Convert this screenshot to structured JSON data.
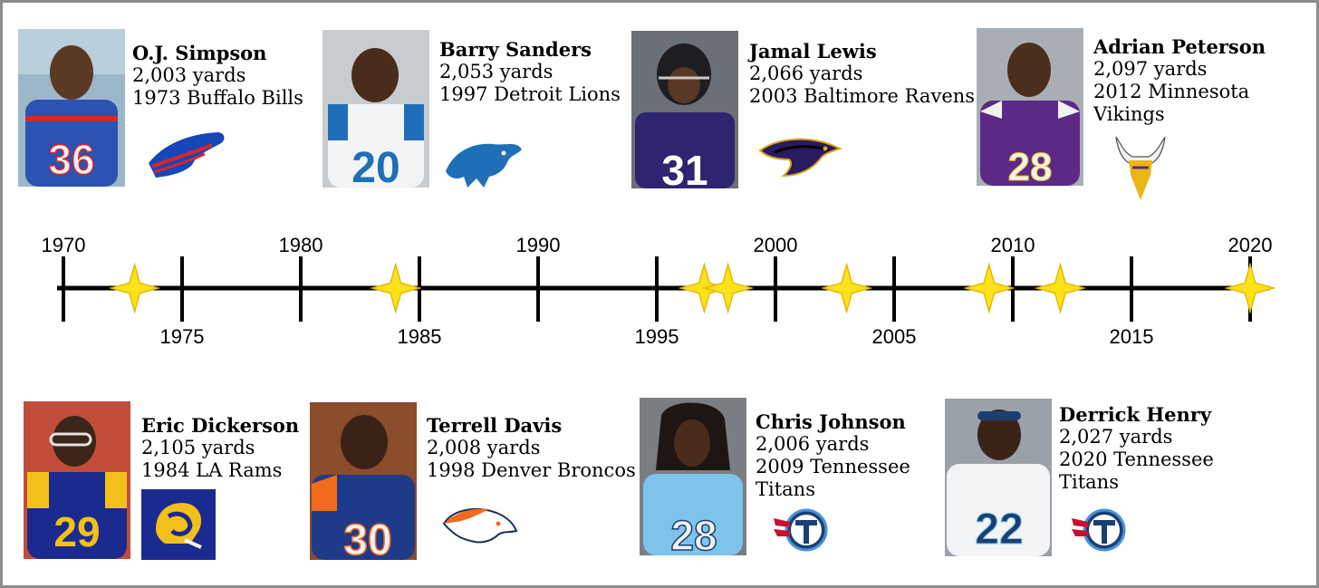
{
  "timeline": {
    "years_above": [
      "1970",
      "1980",
      "1990",
      "2000",
      "2010",
      "2020"
    ],
    "years_below": [
      "1975",
      "1985",
      "1995",
      "2005",
      "2015"
    ],
    "record_years": [
      1973,
      1984,
      1997,
      1998,
      2003,
      2009,
      2012,
      2020
    ]
  },
  "players_top": [
    {
      "name": "O.J. Simpson",
      "yards": "2,003 yards",
      "team_line1": "1973 Buffalo Bills",
      "team_line2": "",
      "jersey": "36",
      "logo": "bills-logo-icon"
    },
    {
      "name": "Barry Sanders",
      "yards": "2,053 yards",
      "team_line1": "1997 Detroit Lions",
      "team_line2": "",
      "jersey": "20",
      "logo": "lions-logo-icon"
    },
    {
      "name": "Jamal Lewis",
      "yards": "2,066 yards",
      "team_line1": "2003 Baltimore Ravens",
      "team_line2": "",
      "jersey": "31",
      "logo": "ravens-logo-icon"
    },
    {
      "name": "Adrian Peterson",
      "yards": "2,097 yards",
      "team_line1": "2012 Minnesota",
      "team_line2": "Vikings",
      "jersey": "28",
      "logo": "vikings-logo-icon"
    }
  ],
  "players_bottom": [
    {
      "name": "Eric Dickerson",
      "yards": "2,105 yards",
      "team_line1": "1984 LA Rams",
      "team_line2": "",
      "jersey": "29",
      "logo": "rams-logo-icon"
    },
    {
      "name": "Terrell Davis",
      "yards": "2,008 yards",
      "team_line1": "1998 Denver Broncos",
      "team_line2": "",
      "jersey": "30",
      "logo": "broncos-logo-icon"
    },
    {
      "name": "Chris Johnson",
      "yards": "2,006 yards",
      "team_line1": "2009 Tennessee",
      "team_line2": "Titans",
      "jersey": "28",
      "logo": "titans-logo-icon"
    },
    {
      "name": "Derrick Henry",
      "yards": "2,027 yards",
      "team_line1": "2020 Tennessee",
      "team_line2": "Titans",
      "jersey": "22",
      "logo": "titans-logo-icon"
    }
  ],
  "colors": {
    "line": "#000000",
    "star": "#FFE21A",
    "star_stroke": "#E3B800",
    "bills": "#1646B8",
    "lions": "#1F6FB8",
    "ravens": "#2A1A5E",
    "vikings": "#5B2A86",
    "rams": "#1B2A8F",
    "broncos": "#F26A1B",
    "titans": "#4B92DB"
  }
}
